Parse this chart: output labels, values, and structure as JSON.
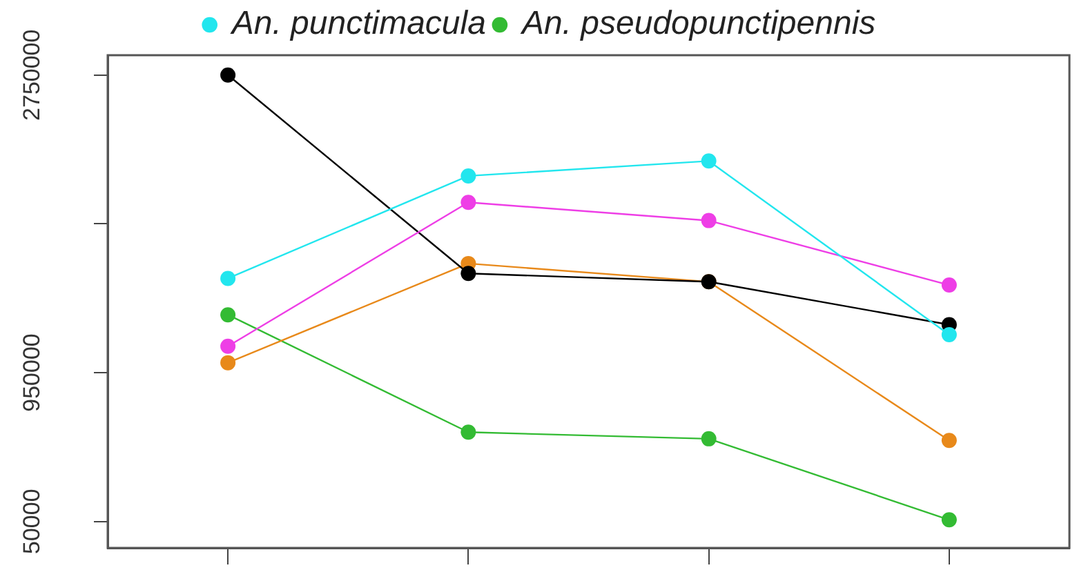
{
  "chart_data": {
    "type": "line",
    "categories": [
      null,
      null,
      null,
      null
    ],
    "ylim": [
      -110000,
      2870000
    ],
    "yticks": [
      50000,
      {
        "value": 950000,
        "label": "950000"
      },
      {
        "value": 1850000,
        "label": null
      },
      2750000
    ],
    "tick_labels": "y",
    "series": [
      {
        "name": "An. punctimacula",
        "color": "#22e6ee",
        "values": [
          1520000,
          2140000,
          2230000,
          1180000
        ]
      },
      {
        "color": "#ee3ee6",
        "values": [
          1110000,
          1980000,
          1870000,
          1480000
        ]
      },
      {
        "color": "#000000",
        "values": [
          2750000,
          1550000,
          1500000,
          1240000
        ]
      },
      {
        "color": "#e8891a",
        "values": [
          1010000,
          1610000,
          1500000,
          540000
        ]
      },
      {
        "name": "An. pseudopunctipennis",
        "color": "#33bb33",
        "values": [
          1300000,
          590000,
          550000,
          60000
        ]
      }
    ],
    "legend": "top",
    "marker": "circle",
    "line_style": "solid",
    "grid": false
  }
}
